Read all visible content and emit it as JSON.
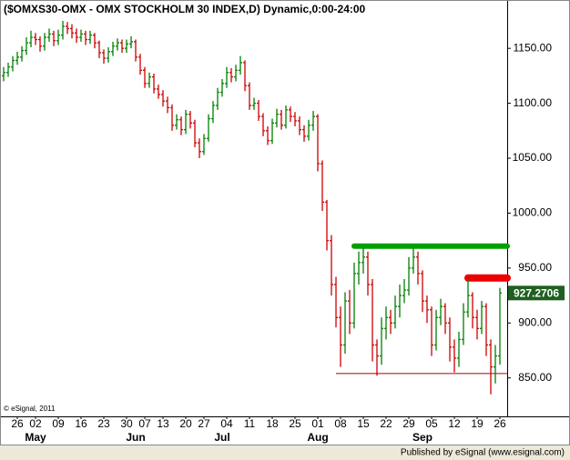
{
  "chart_data": {
    "type": "ohlc",
    "title": "($OMXS30-OMX - OMX STOCKHOLM 30 INDEX,D) Dynamic,0:00-24:00",
    "categories": [
      null,
      null,
      null,
      "26",
      null,
      null,
      null,
      "02",
      null,
      null,
      null,
      null,
      "09",
      null,
      null,
      null,
      null,
      "16",
      null,
      null,
      null,
      null,
      "23",
      null,
      null,
      null,
      null,
      "30",
      null,
      null,
      null,
      "07",
      null,
      null,
      null,
      "13",
      null,
      null,
      null,
      null,
      "20",
      null,
      null,
      null,
      "27",
      null,
      null,
      null,
      null,
      "04",
      null,
      null,
      null,
      null,
      "11",
      null,
      null,
      null,
      null,
      "18",
      null,
      null,
      null,
      null,
      "25",
      null,
      null,
      null,
      null,
      "01",
      null,
      null,
      null,
      null,
      "08",
      null,
      null,
      null,
      null,
      "15",
      null,
      null,
      null,
      null,
      "22",
      null,
      null,
      null,
      null,
      "29",
      null,
      null,
      null,
      null,
      "05",
      null,
      null,
      null,
      null,
      "12",
      null,
      null,
      null,
      null,
      "19",
      null,
      null,
      null,
      null,
      "26"
    ],
    "months": [
      null,
      null,
      null,
      null,
      null,
      null,
      null,
      "May",
      null,
      null,
      null,
      null,
      null,
      null,
      null,
      null,
      null,
      null,
      null,
      null,
      null,
      null,
      null,
      null,
      null,
      null,
      null,
      null,
      null,
      "Jun",
      null,
      null,
      null,
      null,
      null,
      null,
      null,
      null,
      null,
      null,
      null,
      null,
      null,
      null,
      null,
      null,
      null,
      null,
      "Jul",
      null,
      null,
      null,
      null,
      null,
      null,
      null,
      null,
      null,
      null,
      null,
      null,
      null,
      null,
      null,
      null,
      null,
      null,
      null,
      null,
      "Aug",
      null,
      null,
      null,
      null,
      null,
      null,
      null,
      null,
      null,
      null,
      null,
      null,
      null,
      null,
      null,
      null,
      null,
      null,
      null,
      null,
      null,
      null,
      "Sep",
      null,
      null,
      null,
      null,
      null,
      null,
      null,
      null,
      null,
      null,
      null,
      null,
      null,
      null,
      null,
      null,
      null
    ],
    "open": [
      1125,
      1128,
      1133,
      1139,
      1142,
      1148,
      1155,
      1160,
      1158,
      1152,
      1160,
      1163,
      1157,
      1162,
      1170,
      1168,
      1164,
      1160,
      1163,
      1158,
      1162,
      1155,
      1146,
      1141,
      1147,
      1152,
      1155,
      1150,
      1154,
      1156,
      1142,
      1130,
      1118,
      1124,
      1113,
      1108,
      1102,
      1096,
      1080,
      1085,
      1076,
      1090,
      1082,
      1064,
      1056,
      1068,
      1086,
      1098,
      1110,
      1118,
      1128,
      1124,
      1130,
      1137,
      1116,
      1098,
      1100,
      1088,
      1075,
      1066,
      1082,
      1090,
      1080,
      1094,
      1088,
      1084,
      1076,
      1070,
      1080,
      1088,
      1045,
      1010,
      975,
      935,
      905,
      880,
      920,
      900,
      945,
      955,
      960,
      935,
      880,
      870,
      895,
      905,
      900,
      915,
      925,
      930,
      950,
      960,
      945,
      920,
      912,
      880,
      905,
      915,
      900,
      878,
      868,
      885,
      910,
      925,
      905,
      895,
      915,
      880,
      860,
      870
    ],
    "high": [
      1133,
      1137,
      1143,
      1147,
      1152,
      1160,
      1166,
      1164,
      1161,
      1164,
      1168,
      1166,
      1167,
      1175,
      1174,
      1172,
      1168,
      1167,
      1166,
      1166,
      1164,
      1157,
      1149,
      1151,
      1156,
      1159,
      1158,
      1158,
      1161,
      1158,
      1145,
      1133,
      1128,
      1127,
      1117,
      1112,
      1106,
      1099,
      1090,
      1088,
      1094,
      1093,
      1085,
      1068,
      1072,
      1090,
      1102,
      1114,
      1122,
      1133,
      1132,
      1135,
      1143,
      1139,
      1119,
      1105,
      1103,
      1091,
      1079,
      1086,
      1095,
      1094,
      1098,
      1097,
      1092,
      1088,
      1080,
      1085,
      1093,
      1090,
      1048,
      1012,
      980,
      942,
      915,
      928,
      930,
      955,
      965,
      968,
      965,
      940,
      885,
      905,
      915,
      912,
      925,
      935,
      940,
      960,
      968,
      965,
      948,
      925,
      915,
      912,
      922,
      918,
      905,
      885,
      892,
      918,
      940,
      928,
      912,
      920,
      918,
      885,
      880,
      932
    ],
    "low": [
      1120,
      1124,
      1129,
      1135,
      1138,
      1144,
      1151,
      1153,
      1147,
      1148,
      1156,
      1152,
      1153,
      1158,
      1163,
      1159,
      1155,
      1156,
      1153,
      1154,
      1150,
      1141,
      1136,
      1137,
      1143,
      1148,
      1146,
      1146,
      1150,
      1138,
      1126,
      1114,
      1114,
      1109,
      1104,
      1097,
      1091,
      1075,
      1076,
      1071,
      1072,
      1077,
      1060,
      1050,
      1053,
      1065,
      1082,
      1094,
      1106,
      1114,
      1119,
      1120,
      1126,
      1111,
      1094,
      1094,
      1084,
      1070,
      1062,
      1063,
      1078,
      1076,
      1077,
      1083,
      1079,
      1071,
      1065,
      1066,
      1075,
      1038,
      1002,
      966,
      925,
      896,
      860,
      872,
      890,
      895,
      935,
      945,
      925,
      865,
      852,
      862,
      885,
      890,
      895,
      905,
      918,
      925,
      945,
      935,
      910,
      900,
      870,
      875,
      898,
      890,
      865,
      855,
      860,
      880,
      905,
      895,
      885,
      890,
      870,
      835,
      845,
      862
    ],
    "close": [
      1128,
      1133,
      1139,
      1142,
      1148,
      1155,
      1160,
      1158,
      1152,
      1160,
      1163,
      1157,
      1162,
      1170,
      1168,
      1164,
      1160,
      1163,
      1158,
      1162,
      1155,
      1146,
      1141,
      1147,
      1152,
      1155,
      1150,
      1154,
      1156,
      1142,
      1130,
      1118,
      1124,
      1113,
      1108,
      1102,
      1096,
      1080,
      1085,
      1076,
      1090,
      1082,
      1064,
      1056,
      1068,
      1086,
      1098,
      1110,
      1118,
      1128,
      1124,
      1130,
      1137,
      1116,
      1098,
      1100,
      1088,
      1075,
      1066,
      1082,
      1090,
      1080,
      1094,
      1088,
      1084,
      1076,
      1070,
      1080,
      1088,
      1045,
      1010,
      975,
      935,
      905,
      880,
      920,
      900,
      945,
      955,
      960,
      935,
      880,
      870,
      895,
      905,
      900,
      915,
      925,
      930,
      950,
      960,
      945,
      920,
      912,
      880,
      905,
      915,
      900,
      878,
      868,
      885,
      910,
      925,
      905,
      895,
      915,
      880,
      860,
      870,
      927.2706
    ],
    "up_color": "#008000",
    "down_color": "#cc0000",
    "ylim": [
      815,
      1194
    ],
    "yticks": [
      {
        "value": 850,
        "label": "850.00"
      },
      {
        "value": 900,
        "label": "900.00"
      },
      {
        "value": 950,
        "label": "950.00"
      },
      {
        "value": 1000,
        "label": "1000.00"
      },
      {
        "value": 1050,
        "label": "1050.00"
      },
      {
        "value": 1100,
        "label": "1100.00"
      },
      {
        "value": 1150,
        "label": "1150.00"
      }
    ],
    "levels": [
      {
        "value": 970,
        "start": 77,
        "color": "#00a000",
        "width": 6
      },
      {
        "value": 941,
        "start": 102,
        "color": "#ee0000",
        "width": 8
      },
      {
        "value": 854,
        "start": 73,
        "color": "#aa0000",
        "width": 1
      }
    ]
  },
  "footer": {
    "copyright": "© eSignal, 2011",
    "published": "Published by eSignal (www.esignal.com)"
  }
}
